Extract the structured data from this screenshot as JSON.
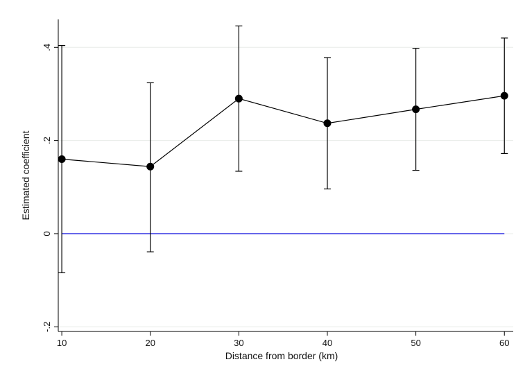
{
  "chart_data": {
    "type": "line",
    "title": "",
    "xlabel": "Distance from border (km)",
    "ylabel": "Estimated coefficient",
    "x": [
      10,
      20,
      30,
      40,
      50,
      60
    ],
    "x_ticks": [
      "10",
      "20",
      "30",
      "40",
      "50",
      "60"
    ],
    "y_ticks": [
      {
        "value": -0.2,
        "label": "-.2"
      },
      {
        "value": 0,
        "label": "0"
      },
      {
        "value": 0.2,
        "label": ".2"
      },
      {
        "value": 0.4,
        "label": ".4"
      }
    ],
    "xlim": [
      9.6,
      61
    ],
    "ylim": [
      -0.21,
      0.46
    ],
    "grid": true,
    "series": [
      {
        "values": [
          0.16,
          0.144,
          0.29,
          0.237,
          0.267,
          0.296
        ],
        "ci_lower": [
          -0.084,
          -0.039,
          0.134,
          0.096,
          0.136,
          0.172
        ],
        "ci_upper": [
          0.404,
          0.324,
          0.446,
          0.378,
          0.398,
          0.42
        ],
        "color": "#000000"
      }
    ],
    "reference_line": {
      "y": 0,
      "color": "#4a4ae6"
    },
    "gridline_color": "#e8ece8"
  }
}
